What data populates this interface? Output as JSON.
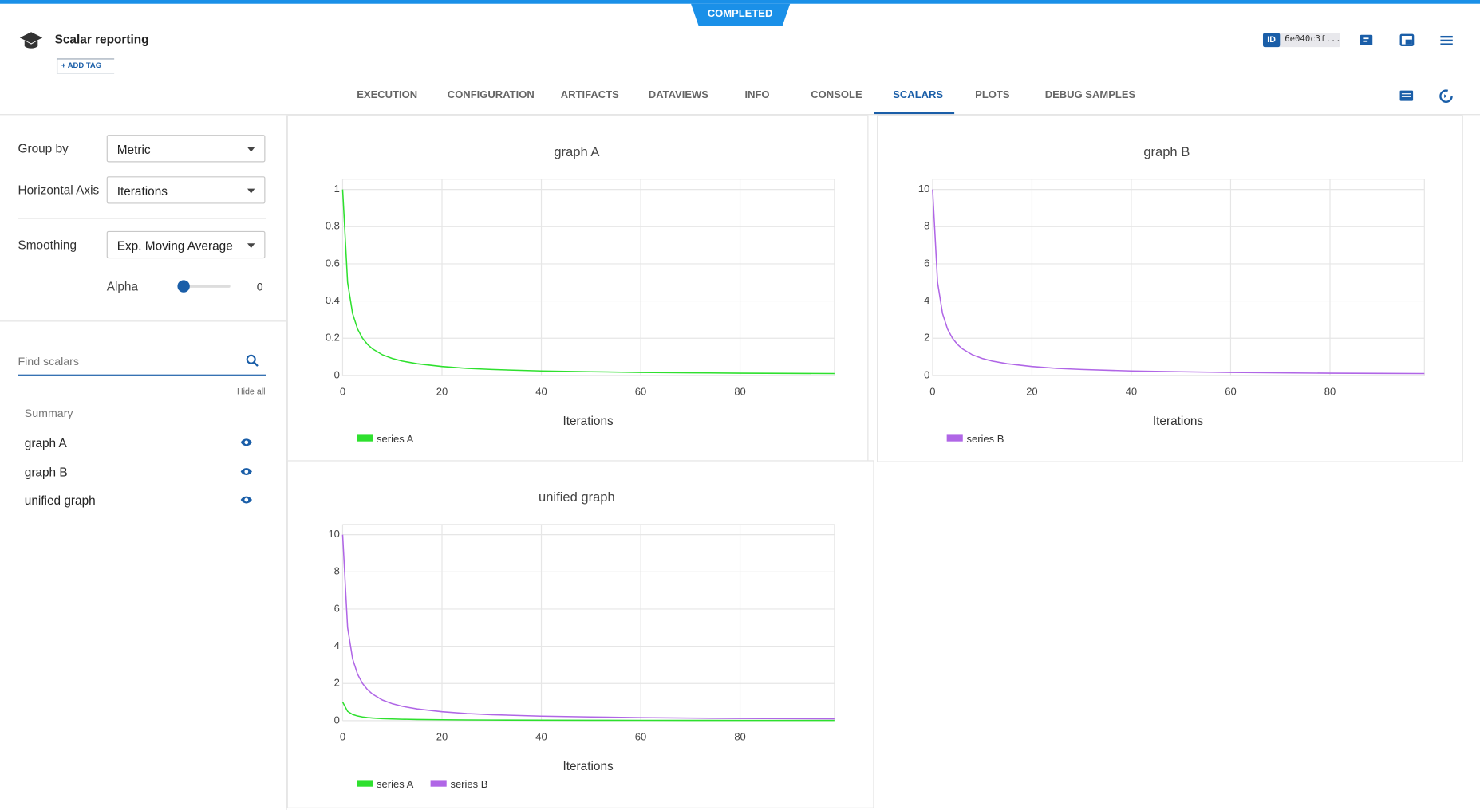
{
  "header": {
    "status": "COMPLETED",
    "title": "Scalar reporting",
    "add_tag": "ADD TAG",
    "id_label": "ID",
    "id_value": "6e040c3f..."
  },
  "tabs": {
    "items": [
      "EXECUTION",
      "CONFIGURATION",
      "ARTIFACTS",
      "DATAVIEWS",
      "INFO",
      "CONSOLE",
      "SCALARS",
      "PLOTS",
      "DEBUG SAMPLES"
    ],
    "active": 6
  },
  "sidebar": {
    "group_by": {
      "label": "Group by",
      "value": "Metric"
    },
    "horizontal_axis": {
      "label": "Horizontal Axis",
      "value": "Iterations"
    },
    "smoothing": {
      "label": "Smoothing",
      "value": "Exp. Moving Average"
    },
    "alpha": {
      "label": "Alpha",
      "value": 0
    },
    "search_placeholder": "Find scalars",
    "hide_all": "Hide all",
    "summary": "Summary",
    "items": [
      "graph A",
      "graph B",
      "unified graph"
    ]
  },
  "chart_data": [
    {
      "type": "line",
      "title": "graph A",
      "x_label": "Iterations",
      "x": [
        0,
        1,
        2,
        3,
        4,
        5,
        6,
        8,
        10,
        12,
        15,
        20,
        25,
        30,
        40,
        50,
        60,
        70,
        80,
        90,
        99
      ],
      "series": [
        {
          "name": "series A",
          "color": "#2ee02e",
          "values": [
            1,
            0.5,
            0.333,
            0.25,
            0.2,
            0.167,
            0.143,
            0.111,
            0.091,
            0.077,
            0.063,
            0.048,
            0.038,
            0.032,
            0.024,
            0.02,
            0.016,
            0.014,
            0.012,
            0.011,
            0.01
          ]
        }
      ],
      "xlim": [
        0,
        99
      ],
      "ylim": [
        0,
        1.055
      ],
      "xticks": [
        0,
        20,
        40,
        60,
        80
      ],
      "yticks": [
        0,
        0.2,
        0.4,
        0.6,
        0.8,
        1
      ],
      "grid": true
    },
    {
      "type": "line",
      "title": "graph B",
      "x_label": "Iterations",
      "x": [
        0,
        1,
        2,
        3,
        4,
        5,
        6,
        8,
        10,
        12,
        15,
        20,
        25,
        30,
        40,
        50,
        60,
        70,
        80,
        90,
        99
      ],
      "series": [
        {
          "name": "series B",
          "color": "#b066e6",
          "values": [
            10,
            5,
            3.33,
            2.5,
            2,
            1.67,
            1.43,
            1.11,
            0.91,
            0.77,
            0.63,
            0.48,
            0.38,
            0.32,
            0.24,
            0.2,
            0.16,
            0.14,
            0.12,
            0.11,
            0.1
          ]
        }
      ],
      "xlim": [
        0,
        99
      ],
      "ylim": [
        0,
        10.55
      ],
      "xticks": [
        0,
        20,
        40,
        60,
        80
      ],
      "yticks": [
        0,
        2,
        4,
        6,
        8,
        10
      ],
      "grid": true
    },
    {
      "type": "line",
      "title": "unified graph",
      "x_label": "Iterations",
      "x": [
        0,
        1,
        2,
        3,
        4,
        5,
        6,
        8,
        10,
        12,
        15,
        20,
        25,
        30,
        40,
        50,
        60,
        70,
        80,
        90,
        99
      ],
      "series": [
        {
          "name": "series A",
          "color": "#2ee02e",
          "values": [
            1,
            0.5,
            0.333,
            0.25,
            0.2,
            0.167,
            0.143,
            0.111,
            0.091,
            0.077,
            0.063,
            0.048,
            0.038,
            0.032,
            0.024,
            0.02,
            0.016,
            0.014,
            0.012,
            0.011,
            0.01
          ]
        },
        {
          "name": "series B",
          "color": "#b066e6",
          "values": [
            10,
            5,
            3.33,
            2.5,
            2,
            1.67,
            1.43,
            1.11,
            0.91,
            0.77,
            0.63,
            0.48,
            0.38,
            0.32,
            0.24,
            0.2,
            0.16,
            0.14,
            0.12,
            0.11,
            0.1
          ]
        }
      ],
      "xlim": [
        0,
        99
      ],
      "ylim": [
        0,
        10.55
      ],
      "xticks": [
        0,
        20,
        40,
        60,
        80
      ],
      "yticks": [
        0,
        2,
        4,
        6,
        8,
        10
      ],
      "grid": true
    }
  ]
}
